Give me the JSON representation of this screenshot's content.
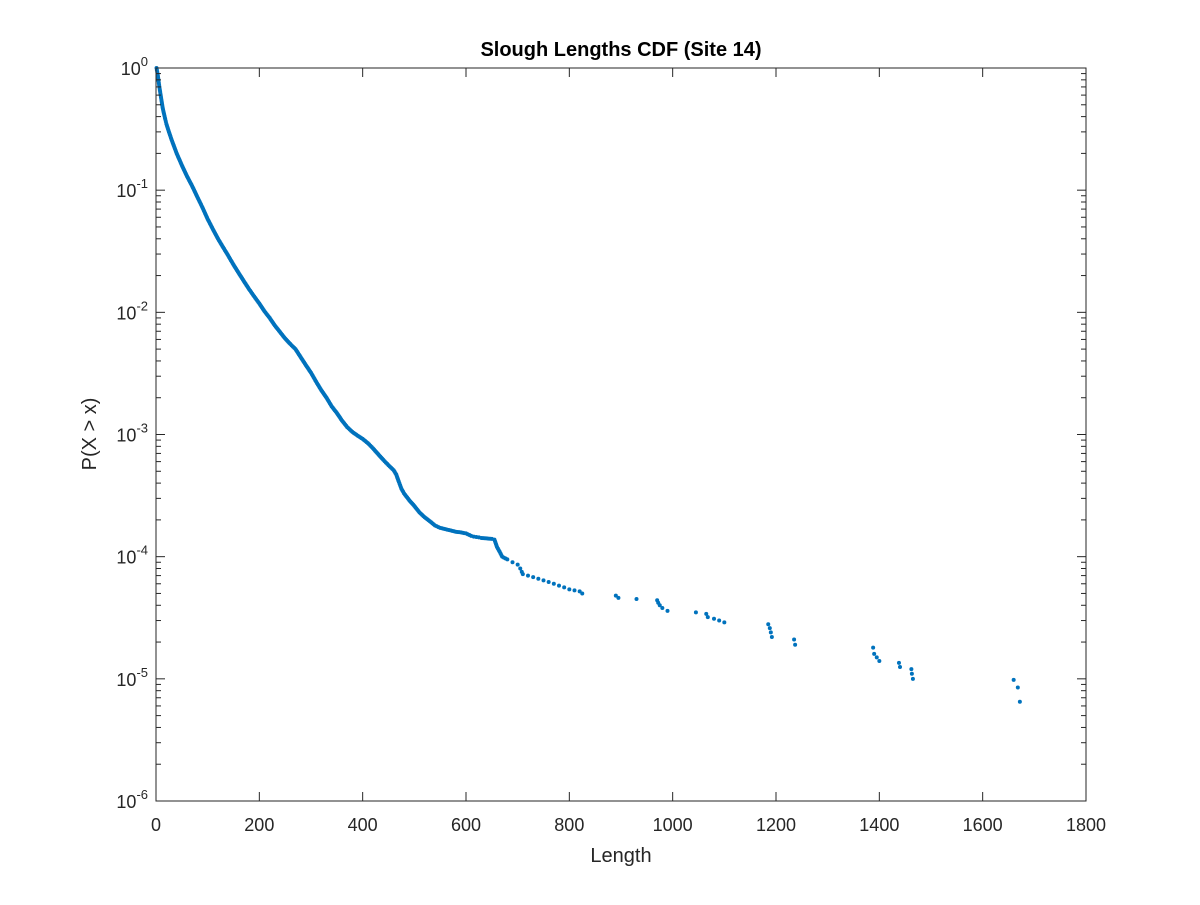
{
  "chart_data": {
    "type": "scatter",
    "title": "Slough Lengths CDF (Site 14)",
    "xlabel": "Length",
    "ylabel": "P(X > x)",
    "xlim": [
      0,
      1800
    ],
    "ylim": [
      1e-06,
      1
    ],
    "yscale": "log",
    "grid": false,
    "marker_color": "#0072BD",
    "x_ticks": [
      {
        "value": 0,
        "label": "0"
      },
      {
        "value": 200,
        "label": "200"
      },
      {
        "value": 400,
        "label": "400"
      },
      {
        "value": 600,
        "label": "600"
      },
      {
        "value": 800,
        "label": "800"
      },
      {
        "value": 1000,
        "label": "1000"
      },
      {
        "value": 1200,
        "label": "1200"
      },
      {
        "value": 1400,
        "label": "1400"
      },
      {
        "value": 1600,
        "label": "1600"
      },
      {
        "value": 1800,
        "label": "1800"
      }
    ],
    "y_ticks": [
      {
        "value": 1,
        "base": "10",
        "exp": "0"
      },
      {
        "value": 0.1,
        "base": "10",
        "exp": "-1"
      },
      {
        "value": 0.01,
        "base": "10",
        "exp": "-2"
      },
      {
        "value": 0.001,
        "base": "10",
        "exp": "-3"
      },
      {
        "value": 0.0001,
        "base": "10",
        "exp": "-4"
      },
      {
        "value": 1e-05,
        "base": "10",
        "exp": "-5"
      },
      {
        "value": 1e-06,
        "base": "10",
        "exp": "-6"
      }
    ],
    "series": [
      {
        "points": [
          [
            1,
            1.0
          ],
          [
            3,
            0.9
          ],
          [
            5,
            0.78
          ],
          [
            7,
            0.68
          ],
          [
            9,
            0.6
          ],
          [
            11,
            0.53
          ],
          [
            13,
            0.47
          ],
          [
            15,
            0.43
          ],
          [
            18,
            0.38
          ],
          [
            20,
            0.35
          ],
          [
            25,
            0.3
          ],
          [
            30,
            0.26
          ],
          [
            40,
            0.2
          ],
          [
            50,
            0.16
          ],
          [
            60,
            0.13
          ],
          [
            70,
            0.108
          ],
          [
            80,
            0.088
          ],
          [
            90,
            0.072
          ],
          [
            100,
            0.058
          ],
          [
            110,
            0.048
          ],
          [
            120,
            0.04
          ],
          [
            130,
            0.034
          ],
          [
            140,
            0.029
          ],
          [
            150,
            0.0245
          ],
          [
            160,
            0.021
          ],
          [
            170,
            0.018
          ],
          [
            180,
            0.0155
          ],
          [
            190,
            0.0135
          ],
          [
            200,
            0.0118
          ],
          [
            210,
            0.0102
          ],
          [
            220,
            0.009
          ],
          [
            230,
            0.0078
          ],
          [
            240,
            0.0069
          ],
          [
            250,
            0.0061
          ],
          [
            260,
            0.0055
          ],
          [
            270,
            0.005
          ],
          [
            280,
            0.0043
          ],
          [
            290,
            0.0037
          ],
          [
            300,
            0.0032
          ],
          [
            310,
            0.0027
          ],
          [
            320,
            0.0023
          ],
          [
            330,
            0.002
          ],
          [
            340,
            0.0017
          ],
          [
            350,
            0.0015
          ],
          [
            360,
            0.0013
          ],
          [
            370,
            0.00115
          ],
          [
            380,
            0.00105
          ],
          [
            390,
            0.00098
          ],
          [
            400,
            0.00092
          ],
          [
            410,
            0.00085
          ],
          [
            420,
            0.00077
          ],
          [
            430,
            0.00069
          ],
          [
            440,
            0.00062
          ],
          [
            450,
            0.00056
          ],
          [
            460,
            0.00051
          ],
          [
            465,
            0.00047
          ],
          [
            470,
            0.00041
          ],
          [
            475,
            0.00036
          ],
          [
            480,
            0.00033
          ],
          [
            490,
            0.00029
          ],
          [
            500,
            0.00026
          ],
          [
            510,
            0.00023
          ],
          [
            520,
            0.00021
          ],
          [
            530,
            0.000195
          ],
          [
            540,
            0.00018
          ],
          [
            550,
            0.000172
          ],
          [
            560,
            0.000168
          ],
          [
            570,
            0.000164
          ],
          [
            580,
            0.00016
          ],
          [
            590,
            0.000158
          ],
          [
            600,
            0.000155
          ],
          [
            610,
            0.000148
          ],
          [
            615,
            0.000146
          ],
          [
            620,
            0.000145
          ],
          [
            625,
            0.000144
          ],
          [
            630,
            0.000142
          ],
          [
            640,
            0.000141
          ],
          [
            650,
            0.00014
          ],
          [
            655,
            0.000138
          ],
          [
            660,
            0.00012
          ],
          [
            665,
            0.00011
          ],
          [
            670,
            0.0001
          ],
          [
            680,
            9.5e-05
          ],
          [
            690,
            9e-05
          ],
          [
            700,
            8.6e-05
          ],
          [
            705,
            8e-05
          ],
          [
            708,
            7.5e-05
          ],
          [
            710,
            7.2e-05
          ],
          [
            720,
            7e-05
          ],
          [
            730,
            6.8e-05
          ],
          [
            740,
            6.6e-05
          ],
          [
            750,
            6.4e-05
          ],
          [
            760,
            6.2e-05
          ],
          [
            770,
            6e-05
          ],
          [
            780,
            5.8e-05
          ],
          [
            790,
            5.6e-05
          ],
          [
            800,
            5.4e-05
          ],
          [
            810,
            5.3e-05
          ],
          [
            820,
            5.2e-05
          ],
          [
            825,
            5e-05
          ],
          [
            890,
            4.8e-05
          ],
          [
            895,
            4.6e-05
          ],
          [
            930,
            4.5e-05
          ],
          [
            970,
            4.4e-05
          ],
          [
            972,
            4.2e-05
          ],
          [
            975,
            4e-05
          ],
          [
            980,
            3.8e-05
          ],
          [
            990,
            3.6e-05
          ],
          [
            1045,
            3.5e-05
          ],
          [
            1065,
            3.4e-05
          ],
          [
            1068,
            3.2e-05
          ],
          [
            1080,
            3.1e-05
          ],
          [
            1090,
            3e-05
          ],
          [
            1100,
            2.9e-05
          ],
          [
            1185,
            2.8e-05
          ],
          [
            1188,
            2.6e-05
          ],
          [
            1190,
            2.4e-05
          ],
          [
            1192,
            2.2e-05
          ],
          [
            1235,
            2.1e-05
          ],
          [
            1237,
            1.9e-05
          ],
          [
            1388,
            1.8e-05
          ],
          [
            1390,
            1.6e-05
          ],
          [
            1395,
            1.5e-05
          ],
          [
            1400,
            1.4e-05
          ],
          [
            1438,
            1.35e-05
          ],
          [
            1440,
            1.25e-05
          ],
          [
            1462,
            1.2e-05
          ],
          [
            1463,
            1.1e-05
          ],
          [
            1465,
            1e-05
          ],
          [
            1660,
            9.8e-06
          ],
          [
            1668,
            8.5e-06
          ],
          [
            1672,
            6.5e-06
          ]
        ]
      }
    ]
  }
}
